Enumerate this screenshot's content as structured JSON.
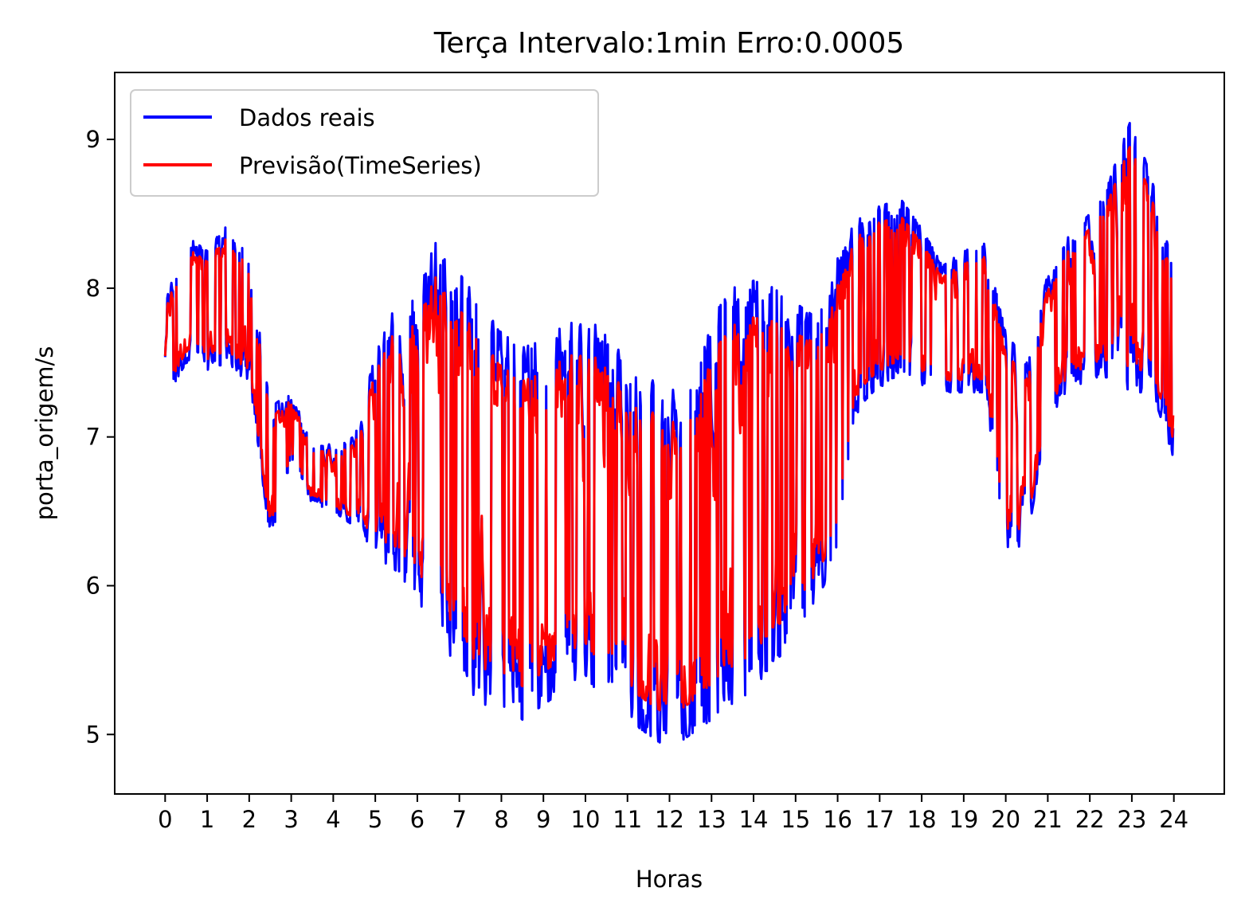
{
  "chart_data": {
    "type": "line",
    "title": "Terça Intervalo:1min Erro:0.0005",
    "xlabel": "Horas",
    "ylabel": "porta_origem/s",
    "xlim": [
      -1.2,
      25.2
    ],
    "ylim": [
      4.6,
      9.45
    ],
    "xticks": [
      0,
      1,
      2,
      3,
      4,
      5,
      6,
      7,
      8,
      9,
      10,
      11,
      12,
      13,
      14,
      15,
      16,
      17,
      18,
      19,
      20,
      21,
      22,
      23,
      24
    ],
    "yticks": [
      5,
      6,
      7,
      8,
      9
    ],
    "legend_position": "upper-left",
    "grid": false,
    "series": [
      {
        "name": "Dados reais",
        "color": "#0000ff"
      },
      {
        "name": "Previsão(TimeSeries)",
        "color": "#ff0000"
      }
    ],
    "envelope": {
      "x": [
        0,
        0.5,
        1,
        1.5,
        2,
        2.5,
        3,
        3.5,
        4,
        4.5,
        5,
        5.5,
        6,
        6.5,
        7,
        7.5,
        8,
        8.5,
        9,
        9.5,
        10,
        10.5,
        11,
        11.5,
        12,
        12.5,
        13,
        13.5,
        14,
        14.5,
        15,
        15.5,
        16,
        16.5,
        17,
        17.5,
        18,
        18.5,
        19,
        19.5,
        20,
        20.5,
        21,
        21.5,
        22,
        22.5,
        23,
        23.5,
        24
      ],
      "low": [
        7.25,
        7.5,
        7.45,
        7.5,
        7.35,
        6.3,
        6.85,
        6.55,
        6.5,
        6.4,
        6.2,
        6.1,
        5.9,
        5.7,
        5.4,
        5.2,
        5.2,
        5.1,
        5.2,
        5.3,
        5.4,
        5.2,
        5.1,
        5.0,
        4.9,
        5.0,
        5.1,
        5.2,
        5.3,
        5.5,
        5.6,
        5.9,
        6.2,
        7.2,
        7.35,
        7.3,
        7.35,
        7.3,
        7.3,
        7.3,
        6.2,
        6.3,
        7.1,
        7.3,
        7.4,
        7.4,
        7.3,
        7.3,
        6.85
      ],
      "high": [
        7.9,
        8.35,
        8.25,
        8.45,
        8.2,
        7.2,
        7.3,
        6.95,
        6.95,
        7.0,
        7.55,
        7.9,
        8.0,
        8.35,
        8.1,
        7.9,
        7.7,
        7.6,
        7.65,
        7.75,
        7.8,
        7.7,
        7.5,
        7.4,
        7.3,
        7.4,
        7.8,
        8.0,
        8.05,
        8.0,
        7.9,
        7.8,
        8.2,
        8.5,
        8.55,
        8.6,
        8.4,
        8.15,
        8.25,
        8.3,
        7.7,
        7.5,
        8.1,
        8.35,
        8.5,
        8.75,
        9.15,
        8.7,
        8.2
      ]
    }
  }
}
